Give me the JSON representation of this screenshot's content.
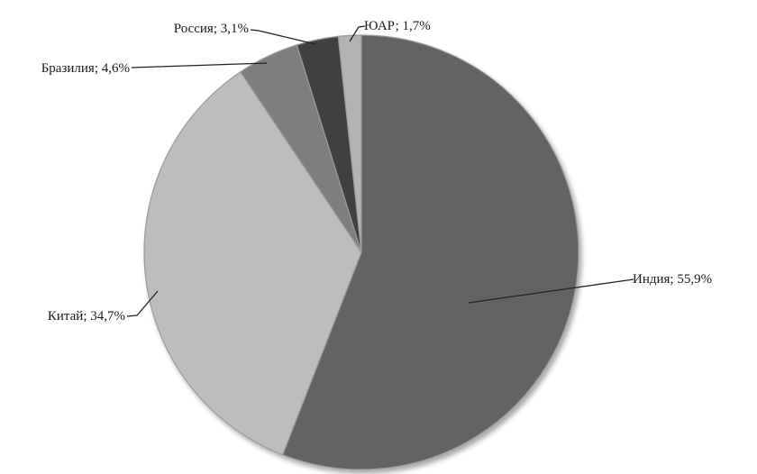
{
  "chart_data": {
    "type": "pie",
    "title": "",
    "start_angle_deg": 0,
    "direction": "clockwise",
    "slices": [
      {
        "name": "Индия",
        "value": 55.9,
        "label": "Индия; 55,9%",
        "color": "#646464"
      },
      {
        "name": "Китай",
        "value": 34.7,
        "label": "Китай; 34,7%",
        "color": "#bdbdbd"
      },
      {
        "name": "Бразилия",
        "value": 4.6,
        "label": "Бразилия; 4,6%",
        "color": "#7e7e7e"
      },
      {
        "name": "Россия",
        "value": 3.1,
        "label": "Россия; 3,1%",
        "color": "#404040"
      },
      {
        "name": "ЮАР",
        "value": 1.7,
        "label": "ЮАР; 1,7%",
        "color": "#b3b3b3"
      }
    ],
    "legend": "none"
  }
}
